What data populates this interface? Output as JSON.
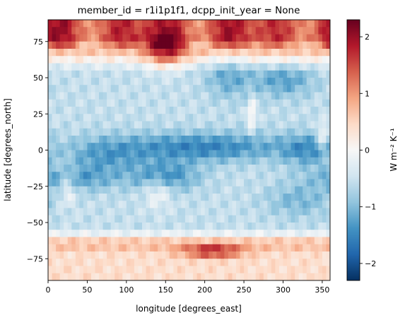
{
  "chart_data": {
    "type": "heatmap",
    "title": "member_id = r1i1p1f1, dcpp_init_year = None",
    "xlabel": "longitude [degrees_east]",
    "ylabel": "latitude [degrees_north]",
    "xlim": [
      0,
      360
    ],
    "ylim": [
      -90,
      90
    ],
    "x_ticks": [
      0,
      50,
      100,
      150,
      200,
      250,
      300,
      350
    ],
    "y_ticks": [
      -75,
      -50,
      -25,
      0,
      25,
      50,
      75
    ],
    "colorbar": {
      "label": "W m⁻² K⁻¹",
      "cmap": "RdBu_r",
      "vmin": -2.3,
      "vmax": 2.3,
      "ticks": [
        -2,
        -1,
        0,
        1,
        2
      ],
      "colors": [
        "#053061",
        "#2166ac",
        "#4393c3",
        "#92c5de",
        "#d1e5f0",
        "#f7f7f7",
        "#fddbc7",
        "#f4a582",
        "#d6604d",
        "#b2182b",
        "#67001f"
      ]
    },
    "grid": false
  }
}
